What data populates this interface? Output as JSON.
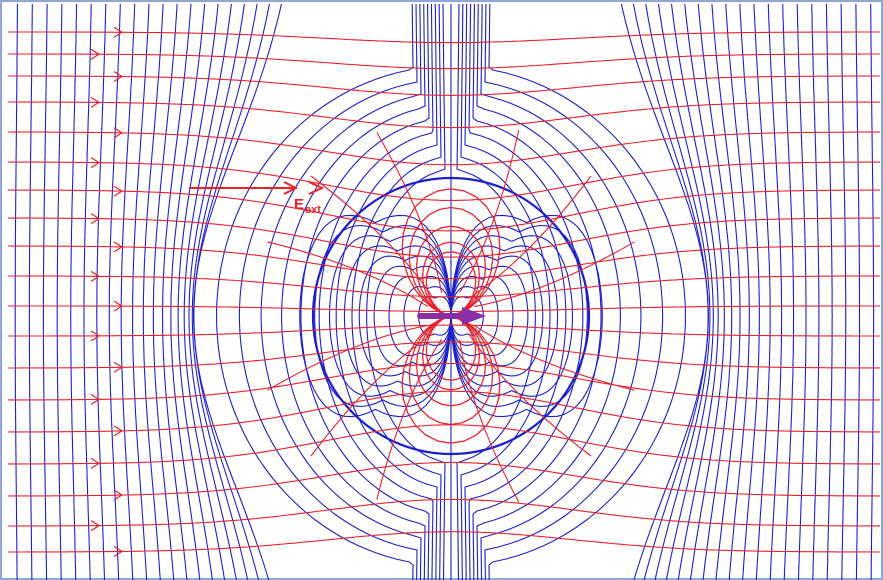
{
  "figure": {
    "external_field_label": "E",
    "external_field_subscript": "ext",
    "colors": {
      "field_lines": "#e8222a",
      "equipotentials": "#1c20c8",
      "dipole": "#8a2da8",
      "frame": "#8fa6d8"
    },
    "elements": [
      "external-field-arrow",
      "dipole-arrow",
      "field-lines",
      "equipotential-lines",
      "spherical-boundary"
    ]
  }
}
